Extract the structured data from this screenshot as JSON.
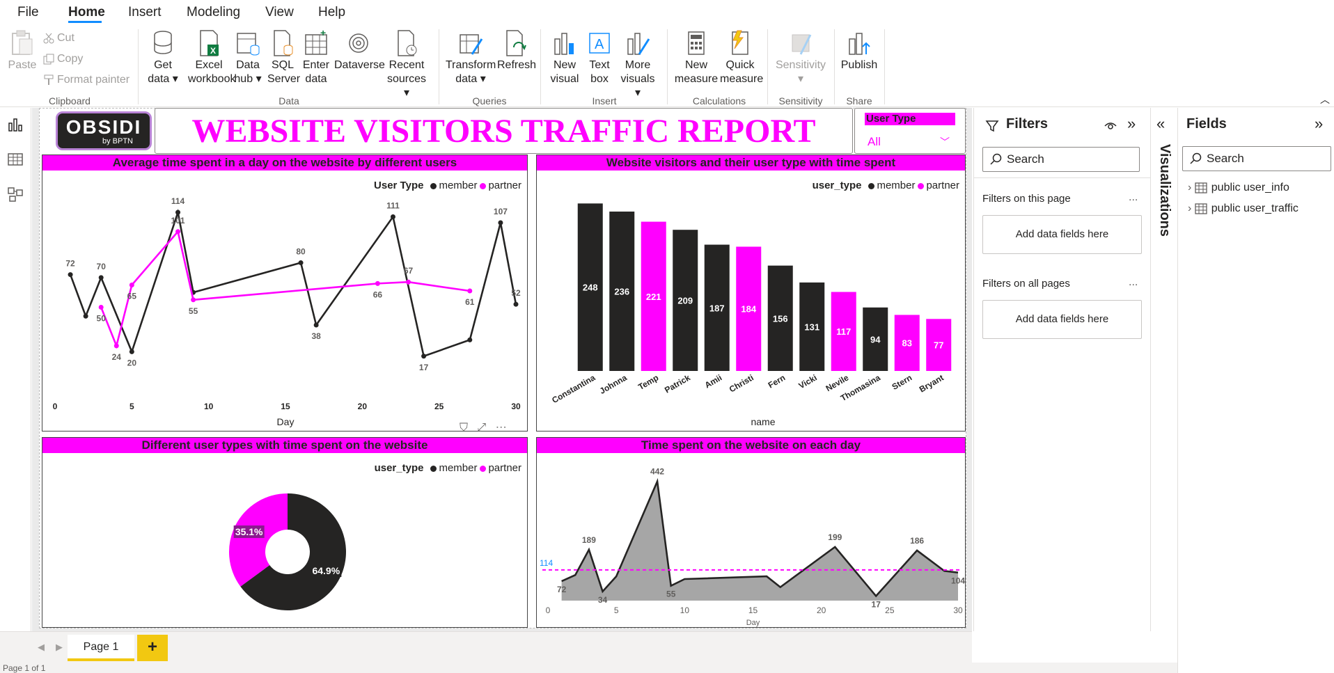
{
  "menu": {
    "items": [
      "File",
      "Home",
      "Insert",
      "Modeling",
      "View",
      "Help"
    ],
    "active": "Home"
  },
  "ribbon": {
    "clipboard": {
      "paste": "Paste",
      "cut": "Cut",
      "copy": "Copy",
      "format_painter": "Format painter",
      "label": "Clipboard"
    },
    "data": {
      "get_data": [
        "Get",
        "data"
      ],
      "excel": [
        "Excel",
        "workbook"
      ],
      "data_hub": [
        "Data",
        "hub"
      ],
      "sql": [
        "SQL",
        "Server"
      ],
      "enter": [
        "Enter",
        "data"
      ],
      "dataverse": "Dataverse",
      "recent": [
        "Recent",
        "sources"
      ],
      "label": "Data"
    },
    "queries": {
      "transform": [
        "Transform",
        "data"
      ],
      "refresh": "Refresh",
      "label": "Queries"
    },
    "insert": {
      "new_visual": [
        "New",
        "visual"
      ],
      "text_box": [
        "Text",
        "box"
      ],
      "more_visuals": [
        "More",
        "visuals"
      ],
      "label": "Insert"
    },
    "calculations": {
      "new_measure": [
        "New",
        "measure"
      ],
      "quick_measure": [
        "Quick",
        "measure"
      ],
      "label": "Calculations"
    },
    "sensitivity": {
      "button": "Sensitivity",
      "label": "Sensitivity"
    },
    "share": {
      "publish": "Publish",
      "label": "Share"
    }
  },
  "report": {
    "logo_main": "OBSIDI",
    "logo_sub": "by BPTN",
    "title": "WEBSITE VISITORS TRAFFIC REPORT",
    "slicer": {
      "title": "User Type",
      "value": "All"
    }
  },
  "colors": {
    "member": "#252423",
    "partner": "#ff00ff",
    "accent": "#ff00ff",
    "area": "#a6a6a6",
    "avg_line": "#ff00ff"
  },
  "visuals": {
    "line": {
      "title": "Average time spent in a day on the website by different users",
      "legend_title": "User Type",
      "legend": [
        "member",
        "partner"
      ]
    },
    "bar": {
      "title": "Website visitors and their user type with time spent",
      "legend_title": "user_type",
      "legend": [
        "member",
        "partner"
      ]
    },
    "donut": {
      "title": "Different user types with time spent on the website",
      "legend_title": "user_type",
      "legend": [
        "member",
        "partner"
      ]
    },
    "area": {
      "title": "Time spent on the website on each day"
    }
  },
  "chart_data": [
    {
      "type": "line",
      "title": "Average time spent in a day on the website by different users",
      "xlabel": "Day",
      "xlim": [
        0,
        30
      ],
      "ylim": [
        0,
        130
      ],
      "xticks": [
        0,
        5,
        10,
        15,
        20,
        25,
        30
      ],
      "series": [
        {
          "name": "member",
          "points": [
            [
              1,
              72
            ],
            [
              2,
              44
            ],
            [
              3,
              70
            ],
            [
              5,
              20
            ],
            [
              8,
              114
            ],
            [
              9,
              60
            ],
            [
              16,
              80
            ],
            [
              17,
              38
            ],
            [
              22,
              111
            ],
            [
              24,
              17
            ],
            [
              27,
              28
            ],
            [
              29,
              107
            ],
            [
              30,
              52
            ]
          ]
        },
        {
          "name": "partner",
          "points": [
            [
              3,
              50
            ],
            [
              4,
              24
            ],
            [
              5,
              65
            ],
            [
              8,
              101
            ],
            [
              9,
              55
            ],
            [
              21,
              66
            ],
            [
              23,
              67
            ],
            [
              27,
              61
            ]
          ]
        }
      ],
      "labels": {
        "member": [
          [
            1,
            72
          ],
          [
            3,
            70
          ],
          [
            5,
            20
          ],
          [
            8,
            114
          ],
          [
            16,
            80
          ],
          [
            17,
            38
          ],
          [
            22,
            111
          ],
          [
            24,
            17
          ],
          [
            29,
            107
          ],
          [
            30,
            52
          ]
        ],
        "partner": [
          [
            3,
            50
          ],
          [
            4,
            24
          ],
          [
            5,
            65
          ],
          [
            8,
            101
          ],
          [
            9,
            55
          ],
          [
            21,
            66
          ],
          [
            23,
            67
          ],
          [
            27,
            61
          ]
        ]
      }
    },
    {
      "type": "bar",
      "title": "Website visitors and their user type with time spent",
      "xlabel": "name",
      "ylim": [
        0,
        270
      ],
      "categories": [
        "Constantina",
        "Johnna",
        "Temp",
        "Patrick",
        "Amii",
        "Christi",
        "Fern",
        "Vicki",
        "Nevile",
        "Thomasina",
        "Stern",
        "Bryant"
      ],
      "values": [
        248,
        236,
        221,
        209,
        187,
        184,
        156,
        131,
        117,
        94,
        83,
        77
      ],
      "user_type": [
        "member",
        "member",
        "partner",
        "member",
        "member",
        "partner",
        "member",
        "member",
        "partner",
        "member",
        "partner",
        "partner"
      ]
    },
    {
      "type": "pie",
      "title": "Different user types with time spent on the website",
      "slices": [
        {
          "name": "member",
          "value": 64.9,
          "label": "64.9%"
        },
        {
          "name": "partner",
          "value": 35.1,
          "label": "35.1%"
        }
      ]
    },
    {
      "type": "area",
      "title": "Time spent on the website on each day",
      "xlabel": "Day",
      "xlim": [
        0,
        30
      ],
      "ylim": [
        0,
        480
      ],
      "xticks": [
        0,
        5,
        10,
        15,
        20,
        25,
        30
      ],
      "average": 114,
      "average_label": "114",
      "points": [
        [
          1,
          72
        ],
        [
          2,
          95
        ],
        [
          3,
          189
        ],
        [
          4,
          34
        ],
        [
          5,
          90
        ],
        [
          8,
          442
        ],
        [
          9,
          55
        ],
        [
          10,
          80
        ],
        [
          16,
          90
        ],
        [
          17,
          50
        ],
        [
          21,
          199
        ],
        [
          24,
          17
        ],
        [
          27,
          186
        ],
        [
          29,
          110
        ],
        [
          30,
          104
        ]
      ],
      "labels": [
        [
          1,
          72
        ],
        [
          3,
          189
        ],
        [
          4,
          34
        ],
        [
          8,
          442
        ],
        [
          9,
          55
        ],
        [
          21,
          199
        ],
        [
          24,
          17
        ],
        [
          27,
          186
        ],
        [
          30,
          104
        ]
      ]
    }
  ],
  "pages": {
    "tab": "Page 1",
    "add": "+",
    "status": "Page 1 of 1"
  },
  "filters": {
    "title": "Filters",
    "search": "Search",
    "on_this_page": "Filters on this page",
    "on_all_pages": "Filters on all pages",
    "add_fields": "Add data fields here",
    "more": "..."
  },
  "visualizations": {
    "title": "Visualizations"
  },
  "fields": {
    "title": "Fields",
    "search": "Search",
    "tables": [
      "public user_info",
      "public user_traffic"
    ]
  }
}
